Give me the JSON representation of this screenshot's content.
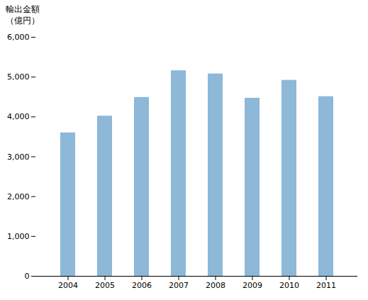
{
  "chart_data": {
    "type": "bar",
    "ylabel": "輸出金額\n（億円）",
    "categories": [
      "2004",
      "2005",
      "2006",
      "2007",
      "2008",
      "2009",
      "2010",
      "2011"
    ],
    "values": [
      3600,
      4020,
      4490,
      5160,
      5080,
      4470,
      4920,
      4510
    ],
    "color": "#8db8d8",
    "ylim": [
      0,
      6000
    ],
    "yticks": [
      0,
      {
        "value": 1000,
        "label": "1,000"
      },
      {
        "value": 2000,
        "label": "2,000"
      },
      {
        "value": 3000,
        "label": "3,000"
      },
      {
        "value": 4000,
        "label": "4,000"
      },
      {
        "value": 5000,
        "label": "5,000"
      },
      {
        "value": 6000,
        "label": "6,000"
      }
    ],
    "grid": false
  }
}
